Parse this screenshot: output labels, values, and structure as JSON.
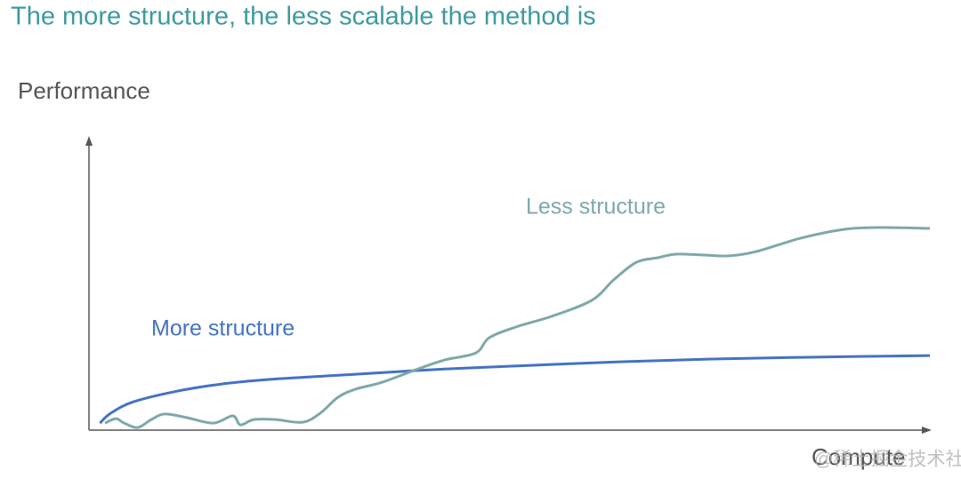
{
  "chart_data": {
    "type": "line",
    "title": "The more structure, the less scalable the method is",
    "ylabel": "Performance",
    "xlabel": "Compute",
    "watermark": "@稀土掘金技术社区",
    "xlim": [
      0,
      100
    ],
    "ylim": [
      0,
      100
    ],
    "series": [
      {
        "name": "More structure",
        "color": "#4472c4",
        "x": [
          1.3,
          2.6,
          5.3,
          10.6,
          15.9,
          21.2,
          31.7,
          42.3,
          52.9,
          63.5,
          74.1,
          84.7,
          100
        ],
        "values": [
          2.4,
          5.8,
          9.7,
          13.4,
          15.8,
          17.3,
          19.1,
          20.9,
          22.2,
          23.4,
          24.3,
          24.9,
          25.5
        ]
      },
      {
        "name": "Less structure",
        "color": "#7fa8a8",
        "x": [
          1.9,
          3.2,
          4.2,
          5.8,
          7.4,
          9.0,
          11.6,
          14.8,
          17.1,
          18.0,
          19.6,
          22.2,
          25.4,
          27.5,
          29.6,
          31.7,
          34.9,
          39.2,
          42.3,
          46.0,
          47.6,
          50.8,
          55.0,
          59.8,
          62.4,
          65.1,
          67.7,
          69.8,
          73.0,
          76.2,
          79.4,
          84.7,
          89.9,
          94.2,
          100
        ],
        "values": [
          2.4,
          3.9,
          2.4,
          0.9,
          3.6,
          5.5,
          4.3,
          2.4,
          4.9,
          1.8,
          3.6,
          3.6,
          2.7,
          5.8,
          11.2,
          14.0,
          16.4,
          21.0,
          24.0,
          26.4,
          31.6,
          35.3,
          38.9,
          44.4,
          51.4,
          57.4,
          59.0,
          60.2,
          59.9,
          59.6,
          61.1,
          65.7,
          68.7,
          69.3,
          69.0
        ]
      }
    ]
  }
}
